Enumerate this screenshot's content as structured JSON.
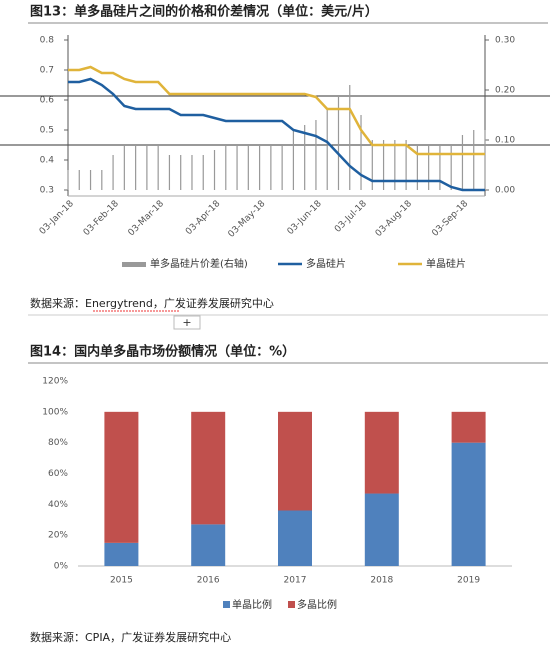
{
  "chart_data": [
    {
      "type": "combo",
      "title": "图13：单多晶硅片之间的价格和价差情况（单位：美元/片）",
      "categories": [
        "03-Jan-18",
        null,
        null,
        null,
        "03-Feb-18",
        null,
        null,
        null,
        "03-Mar-18",
        null,
        null,
        null,
        null,
        "03-Apr-18",
        null,
        null,
        null,
        "03-May-18",
        null,
        null,
        null,
        null,
        "03-Jun-18",
        null,
        null,
        null,
        "03-Jul-18",
        null,
        null,
        null,
        "03-Aug-18",
        null,
        null,
        null,
        null,
        "03-Sep-18",
        null,
        null
      ],
      "series": [
        {
          "name": "单多晶硅片价差(右轴)",
          "type": "bar",
          "axis": "y2",
          "color": "#999999",
          "values": [
            0.04,
            0.04,
            0.04,
            0.04,
            0.07,
            0.09,
            0.09,
            0.09,
            0.09,
            0.07,
            0.07,
            0.07,
            0.07,
            0.08,
            0.09,
            0.09,
            0.09,
            0.09,
            0.09,
            0.09,
            0.12,
            0.13,
            0.14,
            0.16,
            0.19,
            0.21,
            0.15,
            0.1,
            0.1,
            0.1,
            0.1,
            0.09,
            0.09,
            0.09,
            0.09,
            0.11,
            0.12,
            0.12
          ]
        },
        {
          "name": "多晶硅片",
          "type": "line",
          "color": "#1f5fa0",
          "values": [
            0.66,
            0.66,
            0.67,
            0.65,
            0.62,
            0.58,
            0.57,
            0.57,
            0.57,
            0.57,
            0.55,
            0.55,
            0.55,
            0.54,
            0.53,
            0.53,
            0.53,
            0.53,
            0.53,
            0.53,
            0.5,
            0.49,
            0.48,
            0.46,
            0.42,
            0.38,
            0.35,
            0.33,
            0.33,
            0.33,
            0.33,
            0.33,
            0.33,
            0.33,
            0.31,
            0.3,
            0.3,
            0.3
          ]
        },
        {
          "name": "单晶硅片",
          "type": "line",
          "color": "#e0b43a",
          "values": [
            0.7,
            0.7,
            0.71,
            0.69,
            0.69,
            0.67,
            0.66,
            0.66,
            0.66,
            0.62,
            0.62,
            0.62,
            0.62,
            0.62,
            0.62,
            0.62,
            0.62,
            0.62,
            0.62,
            0.62,
            0.62,
            0.62,
            0.61,
            0.57,
            0.57,
            0.57,
            0.5,
            0.45,
            0.45,
            0.45,
            0.45,
            0.42,
            0.42,
            0.42,
            0.42,
            0.42,
            0.42,
            0.42
          ]
        }
      ],
      "ylim": [
        0.3,
        0.8
      ],
      "yticks": [
        0.3,
        0.4,
        0.5,
        0.6,
        0.7,
        0.8
      ],
      "y2lim": [
        0,
        0.3
      ],
      "y2ticks": [
        {
          "value": 0,
          "label": "0.00"
        },
        {
          "value": 0.1,
          "label": "0.10"
        },
        {
          "value": 0.2,
          "label": "0.20"
        },
        {
          "value": 0.3,
          "label": "0.30"
        }
      ]
    },
    {
      "type": "stacked_bar",
      "title": "图14：国内单多晶市场份额情况（单位：%）",
      "categories": [
        "2015",
        "2016",
        "2017",
        "2018",
        "2019"
      ],
      "series": [
        {
          "name": "单晶比例",
          "color": "#4f81bd",
          "values": [
            15,
            27,
            36,
            47,
            80
          ]
        },
        {
          "name": "多晶比例",
          "color": "#c0504d",
          "values": [
            85,
            73,
            64,
            53,
            20
          ]
        }
      ],
      "ylim": [
        0,
        120
      ],
      "yticks": [
        {
          "value": 0,
          "label": "0%"
        },
        {
          "value": 20,
          "label": "20%"
        },
        {
          "value": 40,
          "label": "40%"
        },
        {
          "value": 60,
          "label": "60%"
        },
        {
          "value": 80,
          "label": "80%"
        },
        {
          "value": 100,
          "label": "100%"
        },
        {
          "value": 120,
          "label": "120%"
        }
      ]
    }
  ],
  "sources": [
    "数据来源：Energytrend，广发证券发展研究中心",
    "数据来源：CPIA，广发证券发展研究中心"
  ]
}
